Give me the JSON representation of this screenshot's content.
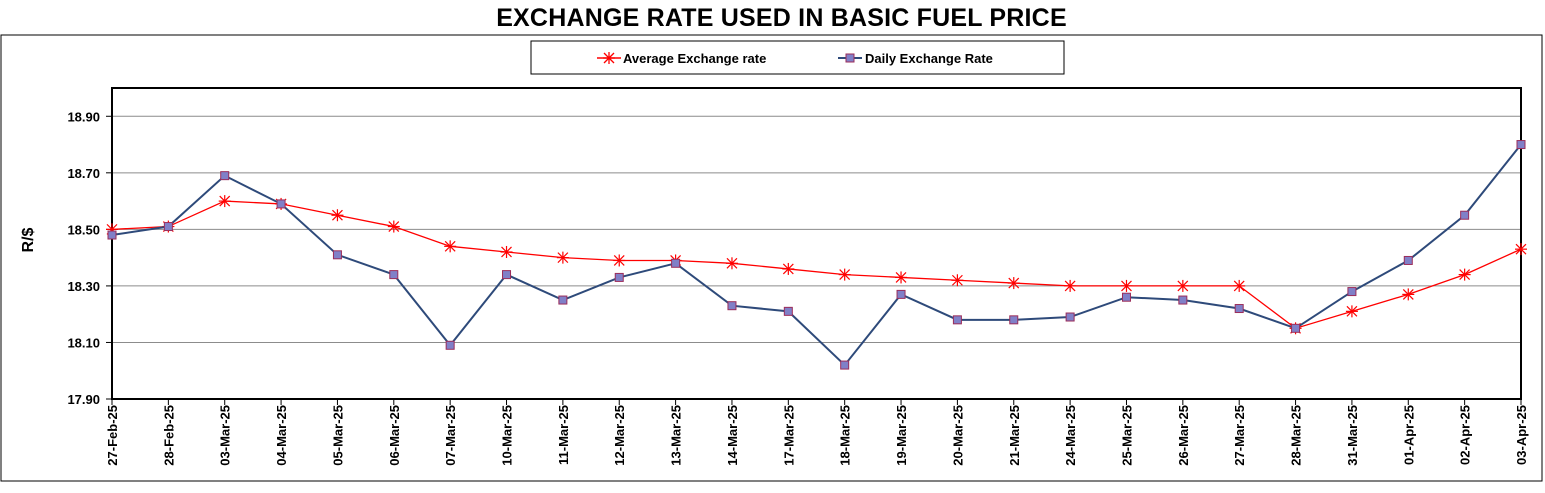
{
  "chart_data": {
    "type": "line",
    "title": "EXCHANGE RATE USED IN BASIC FUEL PRICE",
    "ylabel": "R/$",
    "xlabel": "",
    "ylim": [
      17.9,
      19.0
    ],
    "yticks": [
      "17.90",
      "18.10",
      "18.30",
      "18.50",
      "18.70",
      "18.90"
    ],
    "grid": true,
    "legend_position": "top-center",
    "categories": [
      "27-Feb-25",
      "28-Feb-25",
      "03-Mar-25",
      "04-Mar-25",
      "05-Mar-25",
      "06-Mar-25",
      "07-Mar-25",
      "10-Mar-25",
      "11-Mar-25",
      "12-Mar-25",
      "13-Mar-25",
      "14-Mar-25",
      "17-Mar-25",
      "18-Mar-25",
      "19-Mar-25",
      "20-Mar-25",
      "21-Mar-25",
      "24-Mar-25",
      "25-Mar-25",
      "26-Mar-25",
      "27-Mar-25",
      "28-Mar-25",
      "31-Mar-25",
      "01-Apr-25",
      "02-Apr-25",
      "03-Apr-25"
    ],
    "series": [
      {
        "name": "Average Exchange rate",
        "color": "#ff0000",
        "marker": "asterisk",
        "values": [
          18.5,
          18.51,
          18.6,
          18.59,
          18.55,
          18.51,
          18.44,
          18.42,
          18.4,
          18.39,
          18.39,
          18.38,
          18.36,
          18.34,
          18.33,
          18.32,
          18.31,
          18.3,
          18.3,
          18.3,
          18.3,
          18.15,
          18.21,
          18.27,
          18.34,
          18.43
        ]
      },
      {
        "name": "Daily Exchange Rate",
        "color": "#2e4a7a",
        "marker": "square",
        "marker_color": "#8080c8",
        "values": [
          18.48,
          18.51,
          18.69,
          18.59,
          18.41,
          18.34,
          18.09,
          18.34,
          18.25,
          18.33,
          18.38,
          18.23,
          18.21,
          18.02,
          18.27,
          18.18,
          18.18,
          18.19,
          18.26,
          18.25,
          18.22,
          18.15,
          18.28,
          18.39,
          18.55,
          18.8
        ]
      }
    ]
  }
}
